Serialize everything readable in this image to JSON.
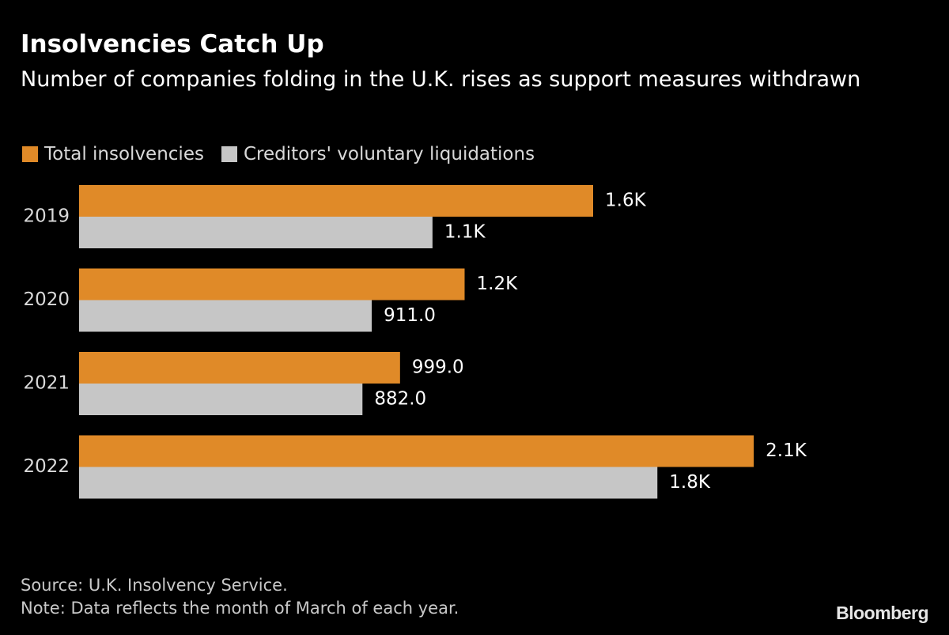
{
  "title": "Insolvencies Catch Up",
  "subtitle": "Number of companies folding in the U.K. rises as support measures withdrawn",
  "colors": {
    "background": "#000000",
    "total_insolvencies": "#e08a28",
    "creditors_voluntary_liquidations": "#c6c6c6",
    "text": "#ffffff",
    "muted_text": "#c8c8c8"
  },
  "chart_data": {
    "type": "bar",
    "orientation": "horizontal",
    "categories": [
      "2019",
      "2020",
      "2021",
      "2022"
    ],
    "series": [
      {
        "name": "Total insolvencies",
        "color": "#e08a28",
        "values": [
          1600,
          1200,
          999,
          2100
        ],
        "labels": [
          "1.6K",
          "1.2K",
          "999.0",
          "2.1K"
        ]
      },
      {
        "name": "Creditors' voluntary liquidations",
        "color": "#c6c6c6",
        "values": [
          1100,
          911,
          882,
          1800
        ],
        "labels": [
          "1.1K",
          "911.0",
          "882.0",
          "1.8K"
        ]
      }
    ],
    "xlim": [
      0,
      2560
    ],
    "grid": false,
    "legend": "top-left"
  },
  "footer": {
    "source": "Source: U.K. Insolvency Service.",
    "note": "Note: Data reflects the month of March of each year."
  },
  "branding": {
    "logo_text": "Bloomberg"
  }
}
